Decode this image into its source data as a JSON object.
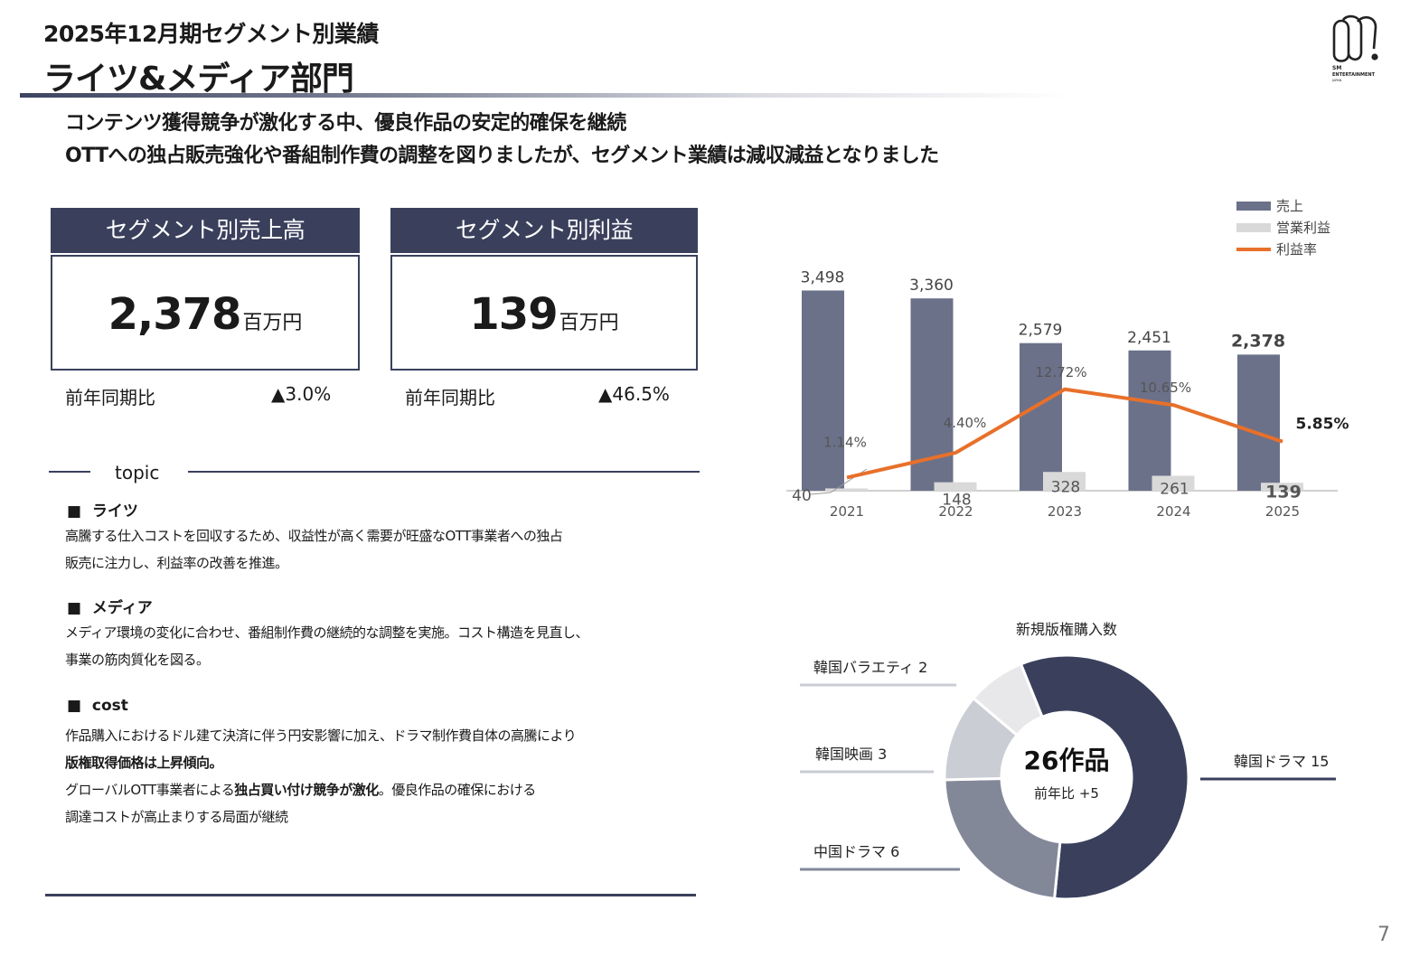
{
  "header": {
    "subtitle": "2025年12月期セグメント別業績",
    "title": "ライツ&メディア部門",
    "logo_text": [
      "SM",
      "ENTERTAINMENT",
      "JAPAN"
    ]
  },
  "headlines": [
    "コンテンツ獲得競争が激化する中、優良作品の安定的確保を継続",
    "OTTへの独占販売強化や番組制作費の調整を図りましたが、セグメント業績は減収減益となりました"
  ],
  "kpis": [
    {
      "label": "セグメント別売上高",
      "value": "2,378",
      "unit": "百万円",
      "yoy_label": "前年同期比",
      "yoy_value": "▲3.0%"
    },
    {
      "label": "セグメント別利益",
      "value": "139",
      "unit": "百万円",
      "yoy_label": "前年同期比",
      "yoy_value": "▲46.5%"
    }
  ],
  "topic": {
    "label": "topic",
    "sections": [
      {
        "heading": "ライツ",
        "lines": [
          [
            {
              "t": "高騰する仕入コストを回収するため、収益性が高く需要が旺盛なOTT事業者への独占",
              "b": false
            }
          ],
          [
            {
              "t": "販売に注力し、利益率の改善を推進。",
              "b": false
            }
          ]
        ]
      },
      {
        "heading": "メディア",
        "lines": [
          [
            {
              "t": "メディア環境の変化に合わせ、番組制作費の継続的な調整を実施。コスト構造を見直し、",
              "b": false
            }
          ],
          [
            {
              "t": "事業の筋肉質化を図る。",
              "b": false
            }
          ]
        ]
      },
      {
        "heading": "cost",
        "lines": [
          [
            {
              "t": "作品購入におけるドル建て決済に伴う円安影響に加え、ドラマ制作費自体の高騰により",
              "b": false
            }
          ],
          [
            {
              "t": "版権取得価格は上昇傾向。",
              "b": true
            }
          ],
          [
            {
              "t": "グローバルOTT事業者による",
              "b": false
            },
            {
              "t": "独占買い付け競争が激化",
              "b": true
            },
            {
              "t": "。優良作品の確保における",
              "b": false
            }
          ],
          [
            {
              "t": "調達コストが高止まりする局面が継続",
              "b": false
            }
          ]
        ]
      }
    ]
  },
  "chart_data": [
    {
      "type": "bar",
      "categories": [
        "2021",
        "2022",
        "2023",
        "2024",
        "2025"
      ],
      "series": [
        {
          "name": "売上",
          "kind": "bar",
          "color": "#6b7189",
          "values": [
            3498,
            3360,
            2579,
            2451,
            2378
          ],
          "labels": [
            "3,498",
            "3,360",
            "2,579",
            "2,451",
            "2,378"
          ]
        },
        {
          "name": "営業利益",
          "kind": "bar",
          "color": "#d9d9d9",
          "values": [
            40,
            148,
            328,
            261,
            139
          ],
          "labels": [
            "40",
            "148",
            "328",
            "261",
            "139"
          ]
        },
        {
          "name": "利益率",
          "kind": "line",
          "color": "#e8702a",
          "values": [
            1.14,
            4.4,
            12.72,
            10.65,
            5.85
          ],
          "labels": [
            "1.14%",
            "4.40%",
            "12.72%",
            "10.65%",
            "5.85%"
          ],
          "unit": "%"
        }
      ],
      "ylim": [
        0,
        3600
      ],
      "legend": "top-right"
    },
    {
      "type": "pie",
      "title": "新規版権購入数",
      "center_value": "26作品",
      "center_sub": "前年比 +5",
      "slices": [
        {
          "label": "韓国ドラマ",
          "value": 15,
          "display": "韓国ドラマ  15",
          "color": "#3a405c"
        },
        {
          "label": "中国ドラマ",
          "value": 6,
          "display": "中国ドラマ  6",
          "color": "#838899"
        },
        {
          "label": "韓国映画",
          "value": 3,
          "display": "韓国映画  3",
          "color": "#cacdd4"
        },
        {
          "label": "韓国バラエティ",
          "value": 2,
          "display": "韓国バラエティ  2",
          "color": "#e8e8ea"
        }
      ]
    }
  ],
  "page_number": "7"
}
